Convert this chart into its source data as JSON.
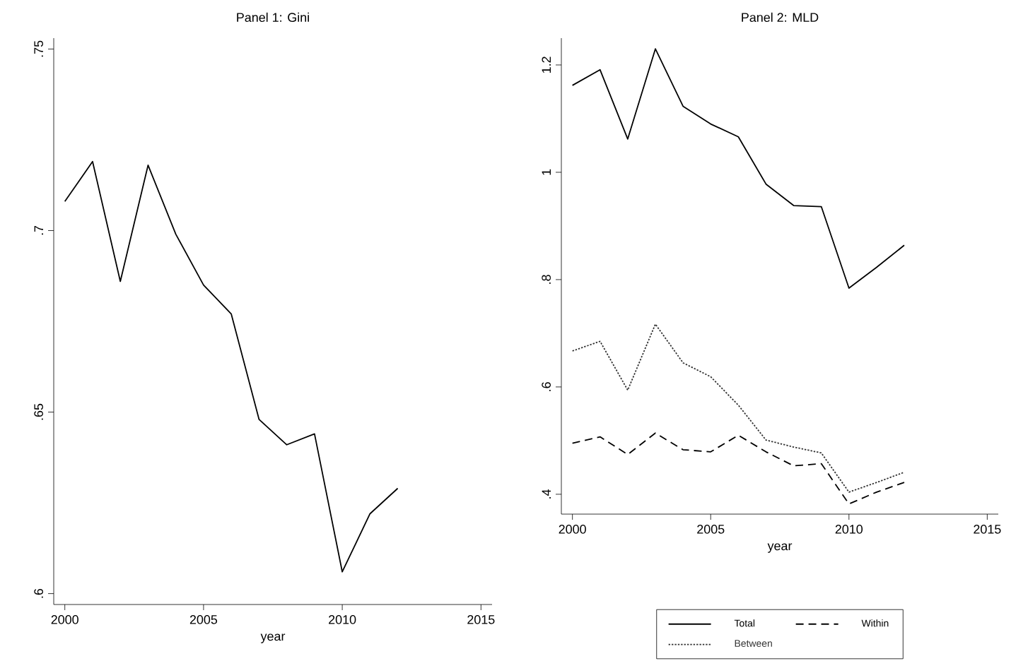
{
  "chart_data": [
    {
      "type": "line",
      "title": "Panel 1: Gini",
      "xlabel": "year",
      "x": [
        2000,
        2001,
        2002,
        2003,
        2004,
        2005,
        2006,
        2007,
        2008,
        2009,
        2010,
        2011,
        2012
      ],
      "series": [
        {
          "color": "#000000",
          "line_style": "solid",
          "values": [
            0.708,
            0.719,
            0.686,
            0.718,
            0.699,
            0.685,
            0.677,
            0.648,
            0.641,
            0.644,
            0.606,
            0.622,
            0.629
          ]
        }
      ],
      "xlim": [
        1999.6,
        2015.4
      ],
      "ylim": [
        0.597,
        0.753
      ],
      "xticks": [
        2000,
        2005,
        2010,
        2015
      ],
      "yticks": [
        {
          "value": 0.6,
          "label": ".6"
        },
        {
          "value": 0.65,
          "label": ".65"
        },
        {
          "value": 0.7,
          "label": ".7"
        },
        {
          "value": 0.75,
          "label": ".75"
        }
      ],
      "grid": false,
      "legend": false
    },
    {
      "type": "line",
      "title": "Panel 2: MLD",
      "xlabel": "year",
      "x": [
        2000,
        2001,
        2002,
        2003,
        2004,
        2005,
        2006,
        2007,
        2008,
        2009,
        2010,
        2011,
        2012
      ],
      "series": [
        {
          "name": "Total",
          "color": "#000000",
          "line_style": "solid",
          "values": [
            1.162,
            1.191,
            1.062,
            1.23,
            1.123,
            1.09,
            1.066,
            0.978,
            0.938,
            0.936,
            0.784,
            0.823,
            0.864
          ]
        },
        {
          "name": "Within",
          "color": "#000000",
          "line_style": "dashed",
          "values": [
            0.495,
            0.507,
            0.474,
            0.514,
            0.483,
            0.479,
            0.51,
            0.479,
            0.453,
            0.457,
            0.382,
            0.404,
            0.422
          ]
        },
        {
          "name": "Between",
          "color": "#333333",
          "line_style": "dotted",
          "values": [
            0.667,
            0.685,
            0.594,
            0.717,
            0.645,
            0.619,
            0.566,
            0.501,
            0.488,
            0.477,
            0.404,
            0.422,
            0.441
          ]
        }
      ],
      "xlim": [
        1999.6,
        2015.4
      ],
      "ylim": [
        0.363,
        1.25
      ],
      "xticks": [
        2000,
        2005,
        2010,
        2015
      ],
      "yticks": [
        {
          "value": 0.4,
          "label": ".4"
        },
        {
          "value": 0.6,
          "label": ".6"
        },
        {
          "value": 0.8,
          "label": ".8"
        },
        1,
        1.2
      ],
      "grid": false,
      "legend": "bottom"
    }
  ]
}
